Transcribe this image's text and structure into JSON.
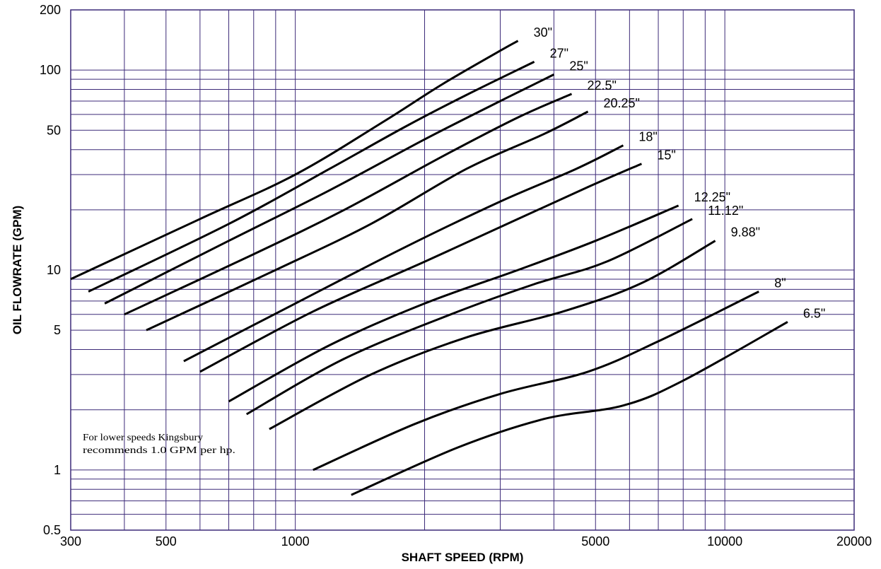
{
  "chart_data": {
    "type": "line",
    "title": "",
    "xlabel": "SHAFT SPEED (RPM)",
    "ylabel": "OIL FLOWRATE (GPM)",
    "x_scale": "log",
    "y_scale": "log",
    "xlim": [
      300,
      20000
    ],
    "ylim": [
      0.5,
      200
    ],
    "x_ticks": [
      300,
      500,
      1000,
      5000,
      10000,
      20000
    ],
    "x_tick_labels": [
      "300",
      "500",
      "1000",
      "5000",
      "10000",
      "20000"
    ],
    "y_ticks": [
      0.5,
      1,
      5,
      10,
      50,
      100,
      200
    ],
    "y_tick_labels": [
      "0.5",
      "1",
      "5",
      "10",
      "50",
      "100",
      "200"
    ],
    "grid": true,
    "grid_color": "#3c2a78",
    "annotation": [
      "For lower speeds Kingsbury",
      "recommends 1.0 GPM per hp."
    ],
    "series": [
      {
        "name": "30\"",
        "points": [
          [
            300,
            9.0
          ],
          [
            600,
            18
          ],
          [
            1000,
            30
          ],
          [
            1600,
            55
          ],
          [
            2200,
            85
          ],
          [
            3000,
            125
          ],
          [
            3300,
            140
          ]
        ]
      },
      {
        "name": "27\"",
        "points": [
          [
            330,
            7.8
          ],
          [
            700,
            17
          ],
          [
            1200,
            32
          ],
          [
            1800,
            52
          ],
          [
            2500,
            75
          ],
          [
            3600,
            110
          ]
        ]
      },
      {
        "name": "25\"",
        "points": [
          [
            360,
            6.8
          ],
          [
            700,
            14
          ],
          [
            1200,
            25
          ],
          [
            2000,
            45
          ],
          [
            3000,
            70
          ],
          [
            4000,
            95
          ]
        ]
      },
      {
        "name": "22.5\"",
        "points": [
          [
            400,
            6.0
          ],
          [
            800,
            12
          ],
          [
            1300,
            20
          ],
          [
            2200,
            37
          ],
          [
            3300,
            58
          ],
          [
            4400,
            76
          ]
        ]
      },
      {
        "name": "20.25\"",
        "points": [
          [
            450,
            5.0
          ],
          [
            900,
            10
          ],
          [
            1500,
            17
          ],
          [
            2500,
            32
          ],
          [
            3800,
            48
          ],
          [
            4800,
            62
          ]
        ]
      },
      {
        "name": "18\"",
        "points": [
          [
            550,
            3.5
          ],
          [
            1000,
            6.8
          ],
          [
            1800,
            13
          ],
          [
            3000,
            22
          ],
          [
            4500,
            32
          ],
          [
            5800,
            42
          ]
        ]
      },
      {
        "name": "15\"",
        "points": [
          [
            600,
            3.1
          ],
          [
            1100,
            6.2
          ],
          [
            2000,
            11
          ],
          [
            3300,
            18
          ],
          [
            4800,
            26
          ],
          [
            6400,
            34
          ]
        ]
      },
      {
        "name": "12.25\"",
        "points": [
          [
            700,
            2.2
          ],
          [
            1200,
            4.2
          ],
          [
            2000,
            6.8
          ],
          [
            3300,
            10
          ],
          [
            5000,
            14
          ],
          [
            7800,
            21
          ]
        ]
      },
      {
        "name": "11.12\"",
        "points": [
          [
            770,
            1.9
          ],
          [
            1300,
            3.6
          ],
          [
            2300,
            6.0
          ],
          [
            3600,
            8.5
          ],
          [
            5300,
            11
          ],
          [
            8400,
            18
          ]
        ]
      },
      {
        "name": "9.88\"",
        "points": [
          [
            870,
            1.6
          ],
          [
            1500,
            3.0
          ],
          [
            2500,
            4.6
          ],
          [
            4200,
            6.2
          ],
          [
            6400,
            8.6
          ],
          [
            9500,
            14
          ]
        ]
      },
      {
        "name": "8\"",
        "points": [
          [
            1100,
            1.0
          ],
          [
            1900,
            1.7
          ],
          [
            3000,
            2.4
          ],
          [
            4800,
            3.1
          ],
          [
            7000,
            4.4
          ],
          [
            12000,
            7.8
          ]
        ]
      },
      {
        "name": "6.5\"",
        "points": [
          [
            1350,
            0.75
          ],
          [
            2400,
            1.3
          ],
          [
            3800,
            1.8
          ],
          [
            5800,
            2.1
          ],
          [
            8000,
            2.8
          ],
          [
            14000,
            5.5
          ]
        ]
      }
    ]
  }
}
